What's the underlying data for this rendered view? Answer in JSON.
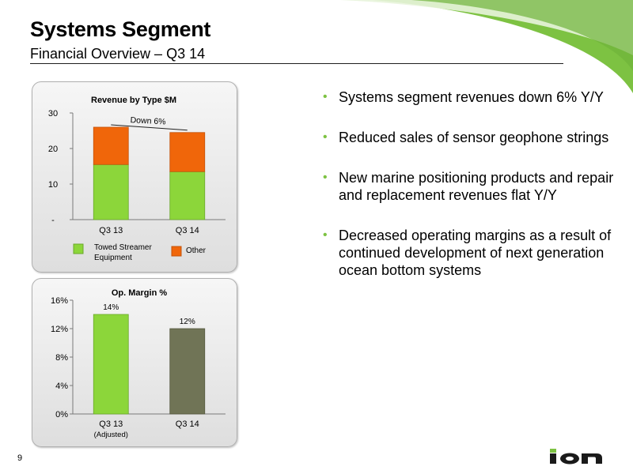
{
  "slide": {
    "title": "Systems Segment",
    "subtitle": "Financial Overview – Q3 14",
    "page_number": "9",
    "logo_text": "ion",
    "accent_color": "#7dc242"
  },
  "bullets": [
    "Systems segment revenues down 6% Y/Y",
    "Reduced sales of sensor geophone strings",
    "New marine positioning products and repair and replacement revenues flat Y/Y",
    "Decreased operating margins as a result of continued development of next generation ocean bottom systems"
  ],
  "chart_data": [
    {
      "type": "bar",
      "stacked": true,
      "title": "Revenue by Type $M",
      "categories": [
        "Q3 13",
        "Q3 14"
      ],
      "series": [
        {
          "name": "Towed Streamer Equipment",
          "values": [
            15.5,
            13.5
          ],
          "color": "#8cd63a"
        },
        {
          "name": "Other",
          "values": [
            10.5,
            11.0
          ],
          "color": "#f0660a"
        }
      ],
      "yticks": [
        0,
        10,
        20,
        30
      ],
      "ytick_labels": [
        "-",
        "10",
        "20",
        "30"
      ],
      "ylim": [
        0,
        30
      ],
      "annotation": "Down 6%",
      "legend_position": "bottom",
      "grid": false
    },
    {
      "type": "bar",
      "title": "Op. Margin %",
      "categories": [
        "Q3 13",
        "Q3 14"
      ],
      "category_sublabels": [
        "(Adjusted)",
        ""
      ],
      "values": [
        14,
        12
      ],
      "data_labels": [
        "14%",
        "12%"
      ],
      "colors": [
        "#8cd63a",
        "#707456"
      ],
      "yticks": [
        0,
        4,
        8,
        12,
        16
      ],
      "ytick_labels": [
        "0%",
        "4%",
        "8%",
        "12%",
        "16%"
      ],
      "ylim": [
        0,
        16
      ],
      "grid": false
    }
  ]
}
